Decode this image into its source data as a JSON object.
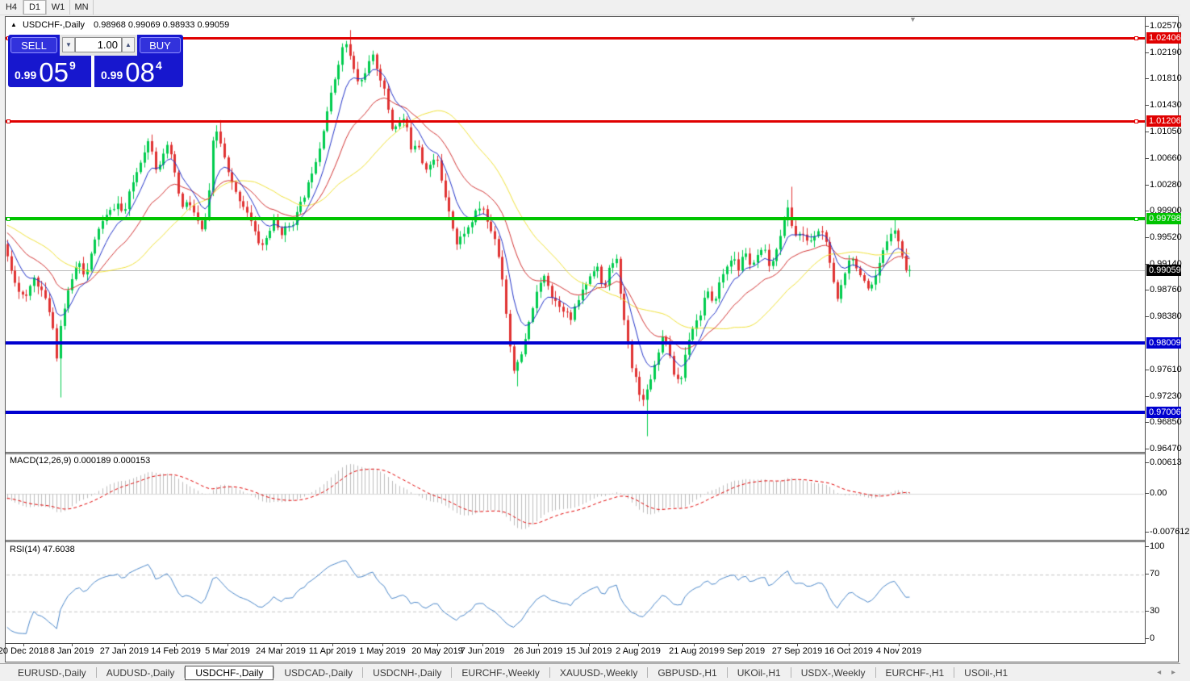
{
  "toolbar": {
    "buttons": [
      {
        "label": "H4",
        "active": false
      },
      {
        "label": "D1",
        "active": true
      },
      {
        "label": "W1",
        "active": false
      },
      {
        "label": "MN",
        "active": false
      }
    ]
  },
  "chart": {
    "title": "USDCHF-,Daily",
    "ohlc_text": "0.98968 0.99069 0.98933 0.99059",
    "collapse_icon": "▲",
    "shift_icon": "▼"
  },
  "trade_panel": {
    "sell_label": "SELL",
    "buy_label": "BUY",
    "volume": "1.00",
    "down_icon": "▼",
    "up_icon": "▲",
    "sell_price": {
      "prefix": "0.99",
      "big": "05",
      "sup": "9"
    },
    "buy_price": {
      "prefix": "0.99",
      "big": "08",
      "sup": "4"
    }
  },
  "price_axis": {
    "ticks": [
      "1.02570",
      "1.02190",
      "1.01810",
      "1.01430",
      "1.01050",
      "1.00660",
      "1.00280",
      "0.99900",
      "0.99520",
      "0.99140",
      "0.98760",
      "0.98380",
      "0.97610",
      "0.97230",
      "0.96850",
      "0.96470"
    ],
    "current": {
      "price": 0.99059,
      "label": "0.99059",
      "bg": "#000000"
    }
  },
  "macd_panel": {
    "label": "MACD(12,26,9) 0.000189 0.000153",
    "ticks": [
      {
        "value": 0.00613,
        "text": "0.00613"
      },
      {
        "value": 0.0,
        "text": "0.00"
      },
      {
        "value": -0.007612,
        "text": "-0.007612"
      }
    ]
  },
  "rsi_panel": {
    "label": "RSI(14) 47.6038",
    "ticks": [
      100,
      70,
      30,
      0
    ],
    "levels": [
      70,
      30
    ]
  },
  "date_axis": {
    "labels": [
      {
        "x": 29,
        "text": "20 Dec 2018"
      },
      {
        "x": 89,
        "text": "8 Jan 2019"
      },
      {
        "x": 154,
        "text": "27 Jan 2019"
      },
      {
        "x": 218,
        "text": "14 Feb 2019"
      },
      {
        "x": 282,
        "text": "5 Mar 2019"
      },
      {
        "x": 348,
        "text": "24 Mar 2019"
      },
      {
        "x": 412,
        "text": "11 Apr 2019"
      },
      {
        "x": 474,
        "text": "1 May 2019"
      },
      {
        "x": 542,
        "text": "20 May 2019"
      },
      {
        "x": 598,
        "text": "7 Jun 2019"
      },
      {
        "x": 667,
        "text": "26 Jun 2019"
      },
      {
        "x": 730,
        "text": "15 Jul 2019"
      },
      {
        "x": 791,
        "text": "2 Aug 2019"
      },
      {
        "x": 860,
        "text": "21 Aug 2019"
      },
      {
        "x": 920,
        "text": "9 Sep 2019"
      },
      {
        "x": 988,
        "text": "27 Sep 2019"
      },
      {
        "x": 1052,
        "text": "16 Oct 2019"
      },
      {
        "x": 1114,
        "text": "4 Nov 2019"
      }
    ]
  },
  "tabs": {
    "scroll_left_icon": "◂",
    "scroll_right_icon": "▸",
    "items": [
      {
        "label": "EURUSD-,Daily",
        "active": false
      },
      {
        "label": "AUDUSD-,Daily",
        "active": false
      },
      {
        "label": "USDCHF-,Daily",
        "active": true
      },
      {
        "label": "USDCAD-,Daily",
        "active": false
      },
      {
        "label": "USDCNH-,Daily",
        "active": false
      },
      {
        "label": "EURCHF-,Weekly",
        "active": false
      },
      {
        "label": "XAUUSD-,Weekly",
        "active": false
      },
      {
        "label": "GBPUSD-,H1",
        "active": false
      },
      {
        "label": "UKOil-,H1",
        "active": false
      },
      {
        "label": "USDX-,Weekly",
        "active": false
      },
      {
        "label": "EURCHF-,H1",
        "active": false
      },
      {
        "label": "USOil-,H1",
        "active": false
      }
    ]
  },
  "chart_data": {
    "type": "candlestick",
    "symbol": "USDCHF",
    "timeframe": "Daily",
    "ohlc_display": {
      "open": 0.98968,
      "high": 0.99069,
      "low": 0.98933,
      "close": 0.99059
    },
    "ylim": [
      0.9634,
      1.0272
    ],
    "colors": {
      "bull": "#00CC4E",
      "bear": "#E03232",
      "ma_fast": "#2233C8",
      "ma_mid": "#D23535",
      "ma_slow": "#EFE13A",
      "macd_hist": "#BDBDBD",
      "macd_signal": "#E00000",
      "rsi": "#4B87C9",
      "level_red": "#E00000",
      "level_green": "#00D800",
      "level_blue": "#0000D0",
      "bid_line": "#BABABA"
    },
    "levels": [
      {
        "price": 1.02406,
        "label": "1.02406",
        "color": "#E00000",
        "thickness": 3,
        "handles": true
      },
      {
        "price": 1.01206,
        "label": "1.01206",
        "color": "#E00000",
        "thickness": 3,
        "handles": true
      },
      {
        "price": 0.99798,
        "label": "0.99798",
        "color": "#00C400",
        "thickness": 4,
        "handles": true
      },
      {
        "price": 0.98009,
        "label": "0.98009",
        "color": "#0000D0",
        "thickness": 4,
        "handles": false
      },
      {
        "price": 0.97006,
        "label": "0.97006",
        "color": "#0000D0",
        "thickness": 4,
        "handles": false
      }
    ],
    "current_price": 0.99059,
    "moving_averages": [
      {
        "period": 8,
        "type": "ema"
      },
      {
        "period": 21,
        "type": "ema"
      },
      {
        "period": 34,
        "type": "sma"
      }
    ],
    "macd": {
      "fast": 12,
      "slow": 26,
      "signal": 9,
      "value": 0.000189,
      "signal_value": 0.000153,
      "scale_max": 0.00613,
      "scale_min": -0.007612
    },
    "rsi": {
      "period": 14,
      "value": 47.6038,
      "levels": [
        70,
        30
      ]
    },
    "price_anchors": [
      [
        -180,
        1.0005
      ],
      [
        -90,
        0.9978
      ],
      [
        0,
        0.9952
      ],
      [
        8,
        0.9945
      ],
      [
        16,
        0.9915
      ],
      [
        26,
        0.988
      ],
      [
        36,
        0.9862
      ],
      [
        46,
        0.9896
      ],
      [
        56,
        0.9876
      ],
      [
        66,
        0.9846
      ],
      [
        72,
        0.9812
      ],
      [
        76,
        0.977
      ],
      [
        80,
        0.9832
      ],
      [
        88,
        0.9868
      ],
      [
        96,
        0.9905
      ],
      [
        104,
        0.992
      ],
      [
        110,
        0.9893
      ],
      [
        118,
        0.993
      ],
      [
        126,
        0.9965
      ],
      [
        134,
        0.998
      ],
      [
        142,
        0.9992
      ],
      [
        150,
        1.0002
      ],
      [
        158,
        0.9985
      ],
      [
        166,
        1.0022
      ],
      [
        174,
        1.0048
      ],
      [
        182,
        1.0075
      ],
      [
        190,
        1.0096
      ],
      [
        198,
        1.0052
      ],
      [
        206,
        1.0068
      ],
      [
        214,
        1.0088
      ],
      [
        222,
        1.0038
      ],
      [
        230,
        0.9995
      ],
      [
        238,
        1.0005
      ],
      [
        246,
        0.9985
      ],
      [
        254,
        0.9962
      ],
      [
        262,
        0.999
      ],
      [
        268,
        1.0088
      ],
      [
        274,
        1.0108
      ],
      [
        280,
        1.0078
      ],
      [
        288,
        1.0042
      ],
      [
        296,
        1.0018
      ],
      [
        304,
        1.0003
      ],
      [
        312,
        0.9988
      ],
      [
        320,
        0.996
      ],
      [
        328,
        0.9938
      ],
      [
        336,
        0.9955
      ],
      [
        344,
        0.9978
      ],
      [
        352,
        0.9958
      ],
      [
        360,
        0.9968
      ],
      [
        368,
        0.9975
      ],
      [
        376,
        0.9998
      ],
      [
        384,
        1.002
      ],
      [
        392,
        1.0052
      ],
      [
        400,
        1.008
      ],
      [
        408,
        1.0126
      ],
      [
        416,
        1.0165
      ],
      [
        424,
        1.0205
      ],
      [
        432,
        1.0238
      ],
      [
        438,
        1.0215
      ],
      [
        444,
        1.019
      ],
      [
        450,
        1.0172
      ],
      [
        458,
        1.0195
      ],
      [
        466,
        1.0215
      ],
      [
        474,
        1.019
      ],
      [
        482,
        1.016
      ],
      [
        490,
        1.011
      ],
      [
        498,
        1.0118
      ],
      [
        506,
        1.0125
      ],
      [
        514,
        1.0082
      ],
      [
        522,
        1.0092
      ],
      [
        530,
        1.0052
      ],
      [
        538,
        1.0058
      ],
      [
        546,
        1.0068
      ],
      [
        554,
        1.0022
      ],
      [
        562,
        0.999
      ],
      [
        570,
        0.9942
      ],
      [
        578,
        0.9958
      ],
      [
        586,
        0.9968
      ],
      [
        594,
        0.9988
      ],
      [
        602,
        1.0
      ],
      [
        610,
        0.9968
      ],
      [
        618,
        0.9952
      ],
      [
        626,
        0.9905
      ],
      [
        634,
        0.9822
      ],
      [
        640,
        0.9762
      ],
      [
        648,
        0.9772
      ],
      [
        656,
        0.9806
      ],
      [
        664,
        0.985
      ],
      [
        672,
        0.988
      ],
      [
        680,
        0.9902
      ],
      [
        688,
        0.9868
      ],
      [
        696,
        0.9858
      ],
      [
        704,
        0.9848
      ],
      [
        712,
        0.9834
      ],
      [
        720,
        0.986
      ],
      [
        728,
        0.988
      ],
      [
        736,
        0.9898
      ],
      [
        744,
        0.9916
      ],
      [
        752,
        0.9872
      ],
      [
        760,
        0.991
      ],
      [
        768,
        0.9928
      ],
      [
        774,
        0.9862
      ],
      [
        780,
        0.9822
      ],
      [
        786,
        0.9774
      ],
      [
        792,
        0.9752
      ],
      [
        798,
        0.972
      ],
      [
        804,
        0.9724
      ],
      [
        810,
        0.9746
      ],
      [
        816,
        0.977
      ],
      [
        822,
        0.9796
      ],
      [
        828,
        0.9818
      ],
      [
        834,
        0.9782
      ],
      [
        840,
        0.9754
      ],
      [
        848,
        0.9744
      ],
      [
        856,
        0.98
      ],
      [
        864,
        0.9826
      ],
      [
        872,
        0.984
      ],
      [
        880,
        0.9878
      ],
      [
        888,
        0.9854
      ],
      [
        896,
        0.9886
      ],
      [
        904,
        0.9908
      ],
      [
        912,
        0.9926
      ],
      [
        920,
        0.9906
      ],
      [
        928,
        0.9936
      ],
      [
        936,
        0.9906
      ],
      [
        944,
        0.9928
      ],
      [
        952,
        0.9934
      ],
      [
        960,
        0.9904
      ],
      [
        968,
        0.9944
      ],
      [
        976,
        0.9974
      ],
      [
        982,
        0.9998
      ],
      [
        988,
        0.9956
      ],
      [
        996,
        0.9958
      ],
      [
        1004,
        0.995
      ],
      [
        1012,
        0.9948
      ],
      [
        1020,
        0.9966
      ],
      [
        1028,
        0.995
      ],
      [
        1034,
        0.9906
      ],
      [
        1042,
        0.9862
      ],
      [
        1050,
        0.9896
      ],
      [
        1058,
        0.9928
      ],
      [
        1066,
        0.9912
      ],
      [
        1074,
        0.989
      ],
      [
        1082,
        0.9872
      ],
      [
        1090,
        0.9896
      ],
      [
        1098,
        0.9928
      ],
      [
        1106,
        0.9956
      ],
      [
        1112,
        0.997
      ],
      [
        1118,
        0.9946
      ],
      [
        1124,
        0.9922
      ],
      [
        1128,
        0.9906
      ]
    ],
    "spikes": [
      {
        "x": 76,
        "low": 0.9722
      },
      {
        "x": 640,
        "low": 0.9738
      },
      {
        "x": 800,
        "low": 0.9666
      },
      {
        "x": 274,
        "high": 1.0122
      },
      {
        "x": 432,
        "high": 1.0252
      },
      {
        "x": 982,
        "high": 1.0026
      },
      {
        "x": 1108,
        "high": 0.998
      }
    ]
  }
}
